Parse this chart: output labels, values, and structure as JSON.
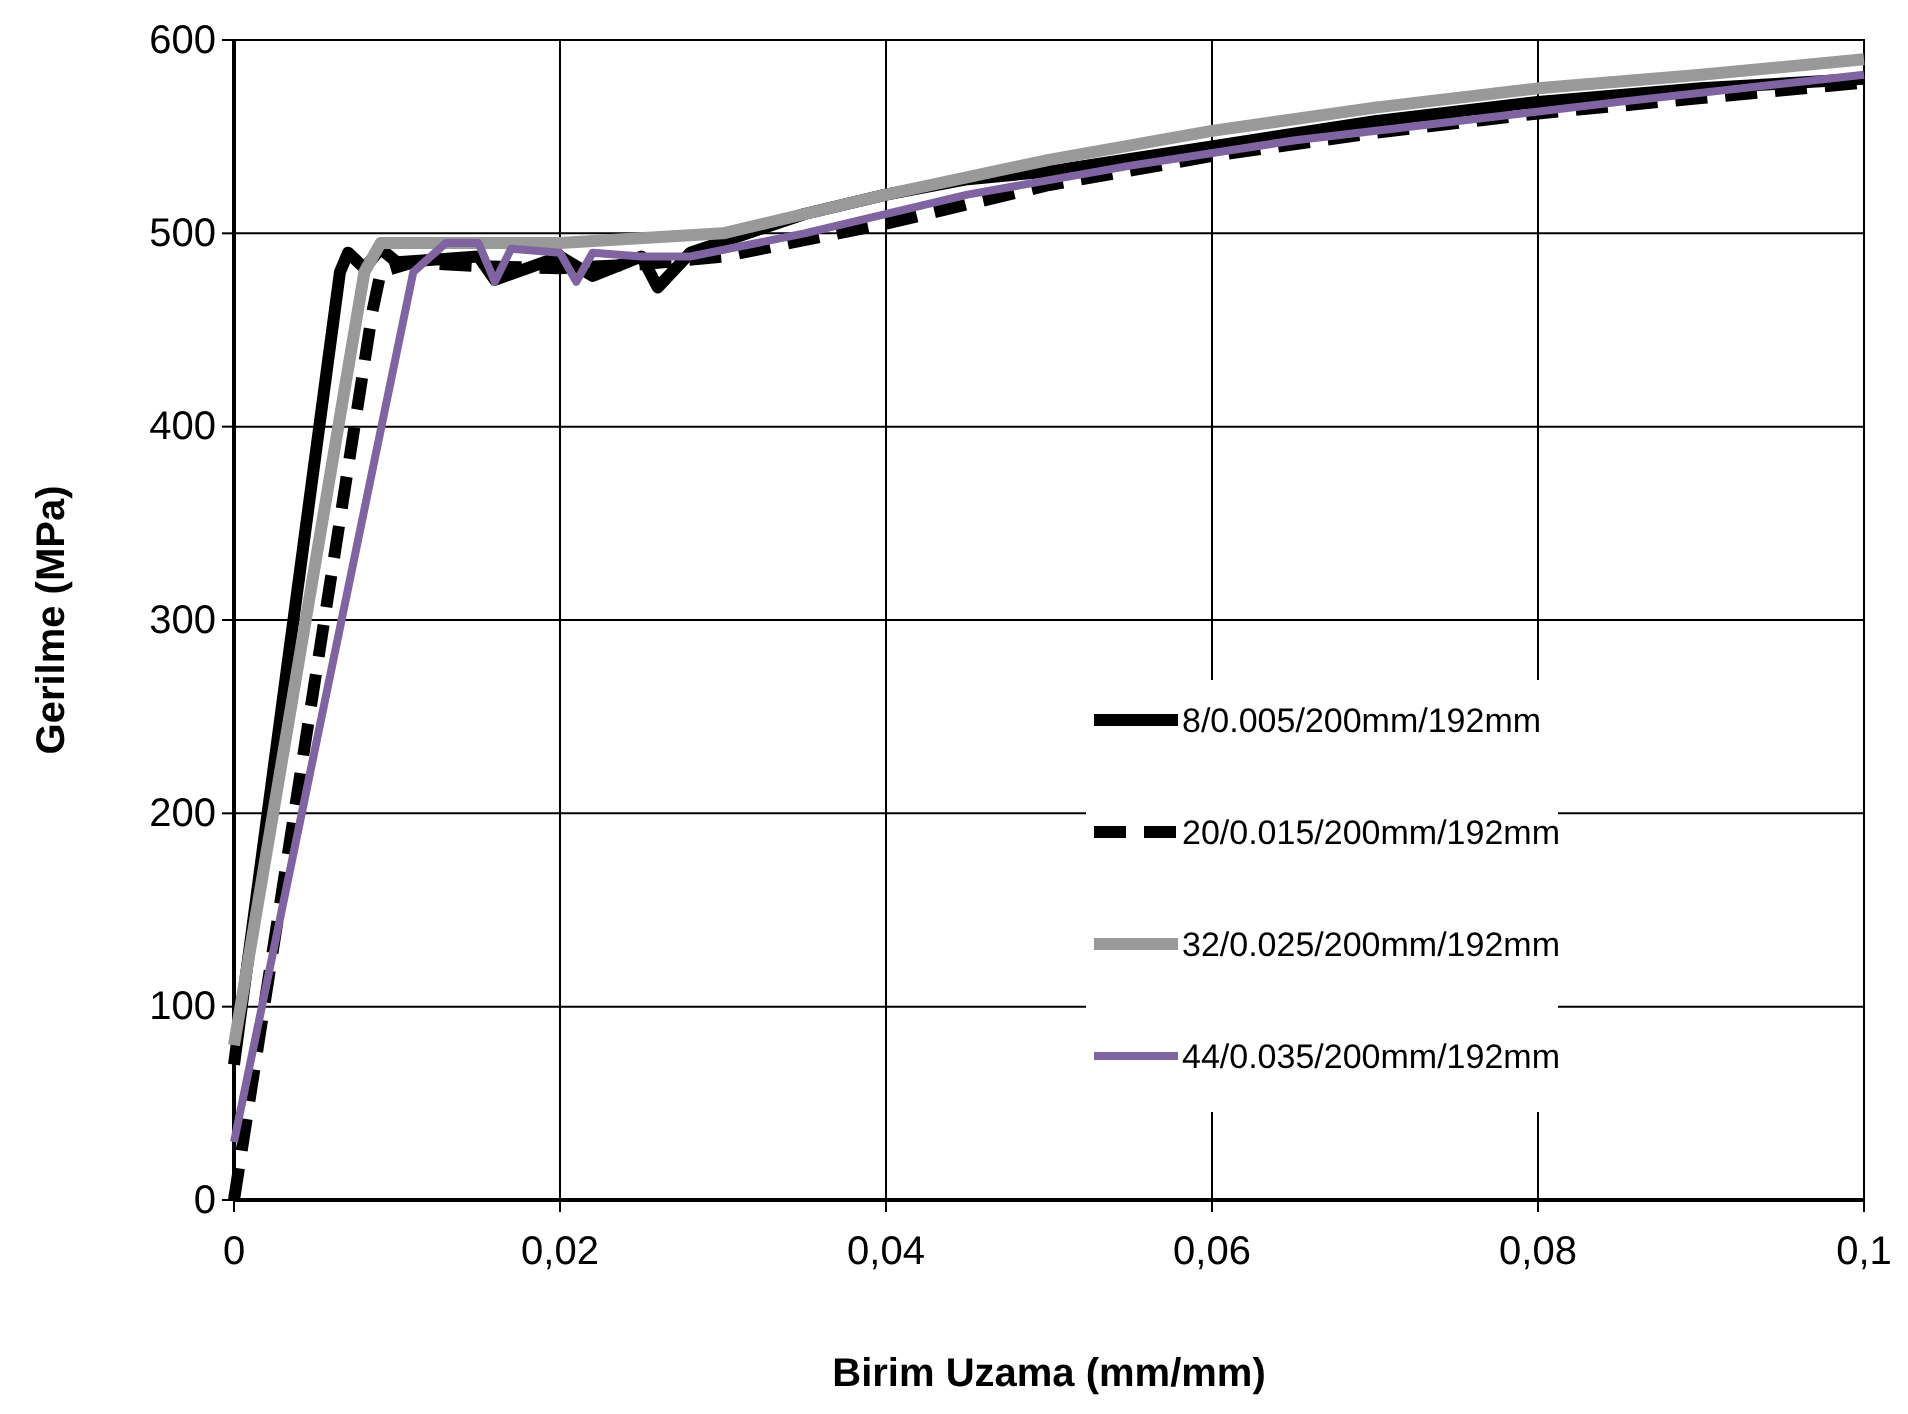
{
  "chart_data": {
    "type": "line",
    "xlabel": "Birim Uzama (mm/mm)",
    "ylabel": "Gerilme (MPa)",
    "xlim": [
      0,
      0.1
    ],
    "ylim": [
      0,
      600
    ],
    "xticks": [
      0,
      {
        "value": 0.02,
        "label": "0,02"
      },
      {
        "value": 0.04,
        "label": "0,04"
      },
      {
        "value": 0.06,
        "label": "0,06"
      },
      {
        "value": 0.08,
        "label": "0,08"
      },
      {
        "value": 0.1,
        "label": "0,1"
      }
    ],
    "yticks": [
      0,
      100,
      200,
      300,
      400,
      500,
      600
    ],
    "grid": true,
    "legend": "bottom right",
    "marker": "none",
    "series": [
      {
        "name": "8/0.005/200mm/192mm",
        "color": "#000000",
        "line_style": "solid",
        "x": [
          0,
          0.0065,
          0.007,
          0.008,
          0.009,
          0.01,
          0.015,
          0.016,
          0.02,
          0.022,
          0.025,
          0.026,
          0.028,
          0.035,
          0.04,
          0.045,
          0.05,
          0.06,
          0.07,
          0.08,
          0.09,
          0.1
        ],
        "values": [
          70,
          480,
          490,
          482,
          492,
          485,
          488,
          476,
          488,
          478,
          488,
          472,
          490,
          510,
          520,
          528,
          532,
          545,
          558,
          568,
          575,
          580
        ]
      },
      {
        "name": "20/0.015/200mm/192mm",
        "color": "#000000",
        "line_style": "dashed",
        "x": [
          0,
          0.0085,
          0.009,
          0.011,
          0.015,
          0.02,
          0.025,
          0.03,
          0.04,
          0.05,
          0.06,
          0.07,
          0.08,
          0.09,
          0.1
        ],
        "values": [
          0,
          460,
          480,
          485,
          483,
          482,
          484,
          488,
          505,
          525,
          540,
          552,
          562,
          570,
          578
        ]
      },
      {
        "name": "32/0.025/200mm/192mm",
        "color": "#999999",
        "line_style": "solid",
        "x": [
          0,
          0.008,
          0.009,
          0.02,
          0.03,
          0.04,
          0.05,
          0.06,
          0.07,
          0.08,
          0.09,
          0.1
        ],
        "values": [
          80,
          480,
          495,
          495,
          500,
          520,
          538,
          553,
          565,
          575,
          582,
          590
        ]
      },
      {
        "name": "44/0.035/200mm/192mm",
        "color": "#8064a2",
        "line_style": "solid",
        "x": [
          0,
          0.011,
          0.013,
          0.015,
          0.016,
          0.017,
          0.02,
          0.021,
          0.022,
          0.025,
          0.028,
          0.035,
          0.045,
          0.055,
          0.065,
          0.075,
          0.085,
          0.1
        ],
        "values": [
          30,
          480,
          495,
          495,
          475,
          492,
          490,
          475,
          490,
          488,
          488,
          500,
          520,
          535,
          548,
          558,
          568,
          582
        ]
      }
    ]
  }
}
